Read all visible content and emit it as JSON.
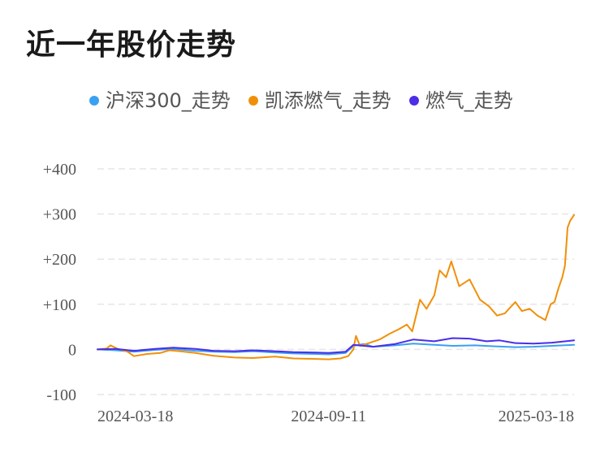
{
  "page": {
    "title": "近一年股价走势"
  },
  "legend": {
    "items": [
      {
        "label": "沪深300_走势",
        "color": "#3aa0f0"
      },
      {
        "label": "凯添燃气_走势",
        "color": "#f0900a"
      },
      {
        "label": "燃气_走势",
        "color": "#4a2ee8"
      }
    ]
  },
  "chart_data": {
    "type": "line",
    "title": "近一年股价走势",
    "xlabel": "",
    "ylabel": "",
    "ylim": [
      -100,
      400
    ],
    "yticks": [
      {
        "value": 400,
        "label": "+400"
      },
      {
        "value": 300,
        "label": "+300"
      },
      {
        "value": 200,
        "label": "+200"
      },
      {
        "value": 100,
        "label": "+100"
      },
      {
        "value": 0,
        "label": "0"
      },
      {
        "value": -100,
        "label": "-100"
      }
    ],
    "xticks": [
      "2024-03-18",
      "2024-09-11",
      "2025-03-18"
    ],
    "x_range": [
      "2024-03-18",
      "2025-03-18"
    ],
    "grid": true,
    "legend_position": "top",
    "series": [
      {
        "name": "沪深300_走势",
        "color": "#3aa0f0",
        "points": [
          [
            "2024-03-18",
            0
          ],
          [
            "2024-04-01",
            -2
          ],
          [
            "2024-04-15",
            -5
          ],
          [
            "2024-05-01",
            -1
          ],
          [
            "2024-05-15",
            1
          ],
          [
            "2024-06-01",
            -3
          ],
          [
            "2024-06-15",
            -5
          ],
          [
            "2024-07-01",
            -6
          ],
          [
            "2024-07-15",
            -4
          ],
          [
            "2024-08-01",
            -7
          ],
          [
            "2024-08-15",
            -9
          ],
          [
            "2024-09-01",
            -10
          ],
          [
            "2024-09-11",
            -11
          ],
          [
            "2024-09-24",
            -8
          ],
          [
            "2024-09-30",
            8
          ],
          [
            "2024-10-08",
            12
          ],
          [
            "2024-10-15",
            6
          ],
          [
            "2024-11-01",
            9
          ],
          [
            "2024-11-15",
            13
          ],
          [
            "2024-12-01",
            10
          ],
          [
            "2024-12-15",
            8
          ],
          [
            "2025-01-01",
            9
          ],
          [
            "2025-01-15",
            7
          ],
          [
            "2025-02-01",
            5
          ],
          [
            "2025-02-15",
            6
          ],
          [
            "2025-03-01",
            8
          ],
          [
            "2025-03-18",
            10
          ]
        ]
      },
      {
        "name": "凯添燃气_走势",
        "color": "#f0900a",
        "points": [
          [
            "2024-03-18",
            0
          ],
          [
            "2024-03-25",
            2
          ],
          [
            "2024-03-28",
            9
          ],
          [
            "2024-04-02",
            2
          ],
          [
            "2024-04-10",
            -5
          ],
          [
            "2024-04-15",
            -15
          ],
          [
            "2024-04-25",
            -10
          ],
          [
            "2024-05-05",
            -8
          ],
          [
            "2024-05-12",
            -2
          ],
          [
            "2024-05-20",
            -4
          ],
          [
            "2024-06-01",
            -8
          ],
          [
            "2024-06-15",
            -14
          ],
          [
            "2024-07-01",
            -18
          ],
          [
            "2024-07-15",
            -19
          ],
          [
            "2024-08-01",
            -16
          ],
          [
            "2024-08-15",
            -20
          ],
          [
            "2024-09-01",
            -21
          ],
          [
            "2024-09-11",
            -22
          ],
          [
            "2024-09-20",
            -20
          ],
          [
            "2024-09-26",
            -15
          ],
          [
            "2024-09-30",
            0
          ],
          [
            "2024-10-02",
            30
          ],
          [
            "2024-10-05",
            8
          ],
          [
            "2024-10-12",
            14
          ],
          [
            "2024-10-20",
            22
          ],
          [
            "2024-10-28",
            35
          ],
          [
            "2024-11-04",
            45
          ],
          [
            "2024-11-10",
            55
          ],
          [
            "2024-11-14",
            40
          ],
          [
            "2024-11-20",
            110
          ],
          [
            "2024-11-25",
            90
          ],
          [
            "2024-12-01",
            120
          ],
          [
            "2024-12-05",
            175
          ],
          [
            "2024-12-10",
            160
          ],
          [
            "2024-12-14",
            195
          ],
          [
            "2024-12-20",
            140
          ],
          [
            "2024-12-28",
            155
          ],
          [
            "2025-01-05",
            110
          ],
          [
            "2025-01-12",
            95
          ],
          [
            "2025-01-18",
            75
          ],
          [
            "2025-01-24",
            80
          ],
          [
            "2025-02-01",
            105
          ],
          [
            "2025-02-06",
            85
          ],
          [
            "2025-02-12",
            90
          ],
          [
            "2025-02-18",
            75
          ],
          [
            "2025-02-24",
            65
          ],
          [
            "2025-02-28",
            100
          ],
          [
            "2025-03-03",
            105
          ],
          [
            "2025-03-06",
            135
          ],
          [
            "2025-03-09",
            160
          ],
          [
            "2025-03-11",
            185
          ],
          [
            "2025-03-13",
            270
          ],
          [
            "2025-03-15",
            285
          ],
          [
            "2025-03-18",
            298
          ]
        ]
      },
      {
        "name": "燃气_走势",
        "color": "#4a2ee8",
        "points": [
          [
            "2024-03-18",
            0
          ],
          [
            "2024-04-01",
            1
          ],
          [
            "2024-04-15",
            -3
          ],
          [
            "2024-05-01",
            1
          ],
          [
            "2024-05-15",
            4
          ],
          [
            "2024-06-01",
            1
          ],
          [
            "2024-06-15",
            -3
          ],
          [
            "2024-07-01",
            -4
          ],
          [
            "2024-07-15",
            -2
          ],
          [
            "2024-08-01",
            -4
          ],
          [
            "2024-08-15",
            -6
          ],
          [
            "2024-09-01",
            -7
          ],
          [
            "2024-09-11",
            -8
          ],
          [
            "2024-09-24",
            -5
          ],
          [
            "2024-09-30",
            10
          ],
          [
            "2024-10-08",
            8
          ],
          [
            "2024-10-15",
            6
          ],
          [
            "2024-11-01",
            12
          ],
          [
            "2024-11-15",
            22
          ],
          [
            "2024-12-01",
            18
          ],
          [
            "2024-12-15",
            25
          ],
          [
            "2024-12-28",
            24
          ],
          [
            "2025-01-10",
            18
          ],
          [
            "2025-01-20",
            20
          ],
          [
            "2025-02-01",
            14
          ],
          [
            "2025-02-15",
            13
          ],
          [
            "2025-03-01",
            15
          ],
          [
            "2025-03-18",
            20
          ]
        ]
      }
    ]
  }
}
